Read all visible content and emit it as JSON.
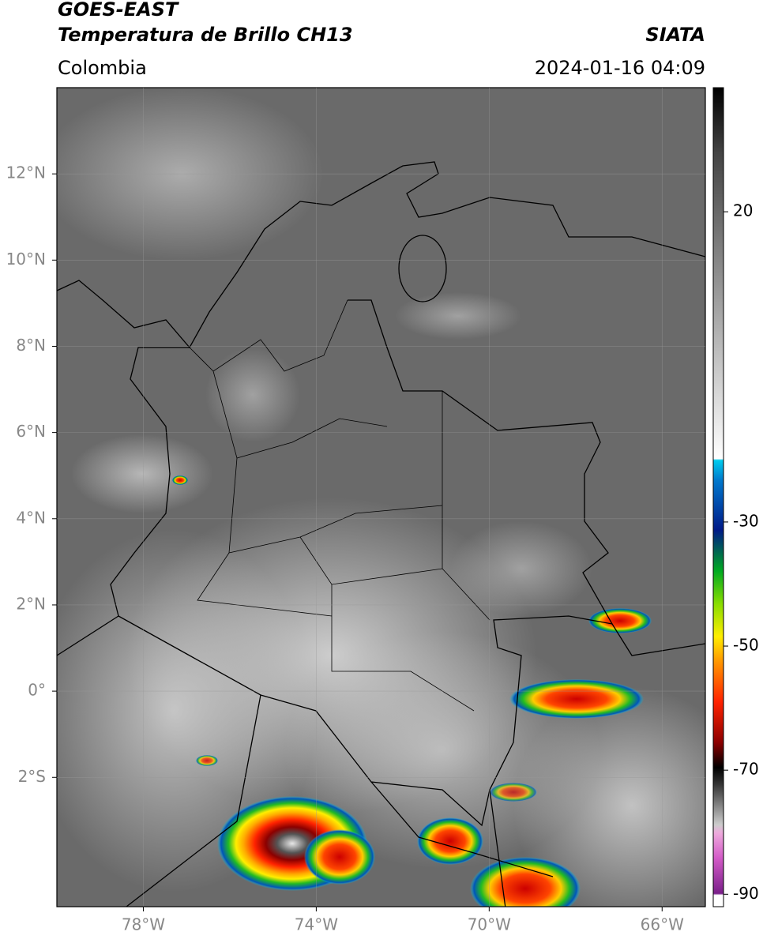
{
  "header": {
    "title": "GOES-EAST",
    "subtitle": "Temperatura de Brillo CH13",
    "source": "SIATA",
    "region": "Colombia",
    "datetime": "2024-01-16 04:09"
  },
  "map": {
    "lonlim": [
      -80,
      -65
    ],
    "latlim": [
      -5,
      14
    ],
    "grid": true,
    "lonticks": [
      {
        "value": -78,
        "label": "78°W"
      },
      {
        "value": -74,
        "label": "74°W"
      },
      {
        "value": -70,
        "label": "70°W"
      },
      {
        "value": -66,
        "label": "66°W"
      }
    ],
    "latticks": [
      {
        "value": 12,
        "label": "12°N"
      },
      {
        "value": 10,
        "label": "10°N"
      },
      {
        "value": 8,
        "label": "8°N"
      },
      {
        "value": 6,
        "label": "6°N"
      },
      {
        "value": 4,
        "label": "4°N"
      },
      {
        "value": 2,
        "label": "2°N"
      },
      {
        "value": 0,
        "label": "0°"
      },
      {
        "value": -2,
        "label": "2°S"
      }
    ]
  },
  "colorbar": {
    "lim": [
      -92,
      40
    ],
    "ticks": [
      20,
      -30,
      -50,
      -70,
      -90
    ]
  }
}
